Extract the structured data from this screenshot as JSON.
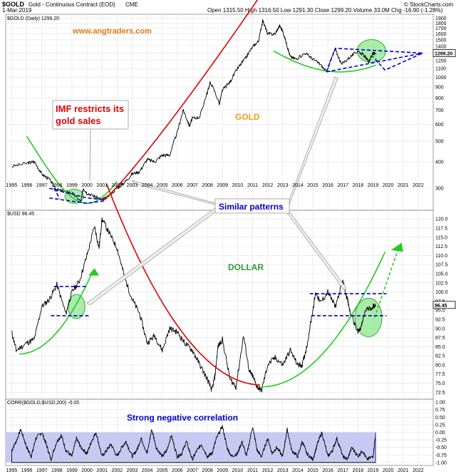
{
  "header": {
    "symbol": "$GOLD",
    "name": "Gold - Continuous Contract (EOD)",
    "exchange": "CME",
    "date": "1-Mar-2019",
    "stats": "Open 1315.50  High 1316.50  Low 1291.30  Close 1299.20  Volume 33.0M  Chg -16.90 (-1.28%)",
    "credit": "© StockCharts.com",
    "site": "www.angtraders.com"
  },
  "chart_data": [
    {
      "type": "line",
      "panel": "gold",
      "legend": "$GOLD (Daily) 1299.20",
      "label": "GOLD",
      "y_scale": "log",
      "ylim": [
        240,
        1950
      ],
      "y_ticks": [
        300,
        400,
        500,
        600,
        700,
        800,
        900,
        1000,
        1100,
        1200,
        1300,
        1400,
        1500,
        1600,
        1700,
        1800,
        1900
      ],
      "last_value": "1299.20",
      "x_years": [
        "1995",
        "1996",
        "1997",
        "1998",
        "1999",
        "2000",
        "2001",
        "2002",
        "2003",
        "2004",
        "2005",
        "2006",
        "2007",
        "2008",
        "2009",
        "2010",
        "2011",
        "2012",
        "2013",
        "2014",
        "2015",
        "2016",
        "2017",
        "2018",
        "2019",
        "2020",
        "2021",
        "2022"
      ],
      "series": [
        {
          "x": [
            1995.0,
            1996.1,
            1996.5,
            1997.0,
            1997.5,
            1998.0,
            1998.5,
            1999.0,
            1999.6,
            1999.75,
            2000.0,
            2000.5,
            2001.0,
            2001.3,
            2002.0,
            2002.5,
            2003.0,
            2003.5,
            2004.0,
            2004.5,
            2005.0,
            2005.5,
            2006.0,
            2006.4,
            2006.8,
            2007.0,
            2007.5,
            2008.0,
            2008.2,
            2008.8,
            2009.0,
            2009.5,
            2010.0,
            2010.5,
            2011.0,
            2011.4,
            2011.68,
            2012.0,
            2012.5,
            2012.8,
            2013.0,
            2013.3,
            2013.5,
            2013.9,
            2014.5,
            2015.0,
            2015.5,
            2015.9,
            2016.5,
            2016.9,
            2017.5,
            2018.0,
            2018.5,
            2018.7,
            2019.0,
            2019.17
          ],
          "y": [
            380,
            395,
            400,
            350,
            330,
            295,
            290,
            285,
            260,
            300,
            285,
            275,
            265,
            270,
            300,
            320,
            350,
            360,
            410,
            400,
            430,
            430,
            550,
            700,
            590,
            640,
            650,
            850,
            950,
            750,
            870,
            950,
            1100,
            1220,
            1390,
            1480,
            1850,
            1600,
            1600,
            1750,
            1650,
            1400,
            1250,
            1220,
            1300,
            1220,
            1150,
            1060,
            1350,
            1150,
            1250,
            1330,
            1250,
            1180,
            1290,
            1299
          ]
        }
      ]
    },
    {
      "type": "line",
      "panel": "dollar",
      "legend": "$USD 96.45",
      "label": "DOLLAR",
      "ylim": [
        71,
        122
      ],
      "y_ticks": [
        72.5,
        75.0,
        77.5,
        80.0,
        82.5,
        85.0,
        87.5,
        90.0,
        92.5,
        95.0,
        97.5,
        100.0,
        102.5,
        105.0,
        107.5,
        110.0,
        112.5,
        115.0,
        117.5,
        120.0
      ],
      "last_value": "96.45",
      "series": [
        {
          "x": [
            1995.0,
            1995.3,
            1996.0,
            1996.5,
            1997.0,
            1997.5,
            1998.0,
            1998.6,
            1999.0,
            1999.5,
            2000.0,
            2000.5,
            2000.8,
            2001.0,
            2001.5,
            2002.0,
            2002.5,
            2003.0,
            2003.5,
            2004.0,
            2004.5,
            2005.0,
            2005.5,
            2006.0,
            2006.5,
            2007.0,
            2007.5,
            2008.0,
            2008.3,
            2008.5,
            2008.7,
            2009.0,
            2009.5,
            2009.9,
            2010.4,
            2010.8,
            2011.0,
            2011.3,
            2011.6,
            2012.0,
            2012.5,
            2013.0,
            2013.5,
            2014.0,
            2014.3,
            2014.6,
            2015.0,
            2015.2,
            2015.5,
            2016.0,
            2016.5,
            2017.0,
            2017.3,
            2017.5,
            2018.0,
            2018.2,
            2018.5,
            2019.0,
            2019.17
          ],
          "y": [
            89,
            84,
            86,
            87,
            96,
            98,
            102,
            94,
            100,
            103,
            110,
            118,
            112,
            120,
            116,
            112,
            104,
            98,
            94,
            86,
            88,
            84,
            90,
            89,
            86,
            84,
            80,
            76,
            73,
            77,
            85,
            87,
            76,
            74,
            88,
            78,
            77,
            74,
            73,
            80,
            82,
            80,
            84,
            80,
            80,
            85,
            95,
            100,
            97,
            100,
            96,
            103,
            98,
            94,
            89,
            90,
            95,
            96,
            96.45
          ]
        }
      ]
    },
    {
      "type": "area",
      "panel": "correlation",
      "legend": "CORR($GOLD,$USD,200) -0.05",
      "ylim": [
        -1.05,
        1.05
      ],
      "y_ticks": [
        -1.0,
        -0.75,
        -0.5,
        -0.25,
        0,
        0.25,
        0.5,
        0.75,
        1.0
      ],
      "last_value": "-0.05",
      "series": [
        {
          "x": [
            1995.0,
            1995.3,
            1995.6,
            1996.0,
            1996.3,
            1996.6,
            1997.0,
            1997.3,
            1997.6,
            1998.0,
            1998.3,
            1998.6,
            1999.0,
            1999.3,
            1999.6,
            2000.0,
            2000.3,
            2000.6,
            2001.0,
            2001.3,
            2001.6,
            2002.0,
            2002.3,
            2002.6,
            2003.0,
            2003.3,
            2003.6,
            2004.0,
            2004.3,
            2004.6,
            2005.0,
            2005.3,
            2005.6,
            2006.0,
            2006.3,
            2006.6,
            2007.0,
            2007.3,
            2007.6,
            2008.0,
            2008.3,
            2008.6,
            2009.0,
            2009.3,
            2009.6,
            2010.0,
            2010.3,
            2010.6,
            2011.0,
            2011.3,
            2011.6,
            2012.0,
            2012.3,
            2012.6,
            2013.0,
            2013.3,
            2013.6,
            2014.0,
            2014.3,
            2014.6,
            2015.0,
            2015.3,
            2015.6,
            2016.0,
            2016.3,
            2016.6,
            2017.0,
            2017.3,
            2017.6,
            2018.0,
            2018.3,
            2018.6,
            2019.0,
            2019.17
          ],
          "y": [
            -0.6,
            -0.3,
            0.1,
            -0.5,
            -0.8,
            -0.2,
            0.0,
            -0.4,
            -0.9,
            -0.3,
            -0.1,
            -0.6,
            -0.8,
            -0.2,
            -0.5,
            -0.7,
            -0.3,
            0.0,
            -0.8,
            -0.6,
            -0.4,
            -0.8,
            -0.5,
            -0.3,
            -0.8,
            -0.6,
            -0.2,
            -0.7,
            0.1,
            -0.5,
            -0.8,
            -0.6,
            -0.1,
            -0.8,
            -0.7,
            -0.3,
            -0.9,
            -0.6,
            -0.4,
            -0.8,
            -0.7,
            -0.2,
            0.2,
            -0.5,
            -0.8,
            -0.7,
            -0.3,
            -0.8,
            0.2,
            -0.6,
            -0.8,
            -0.2,
            -0.7,
            -0.5,
            -0.8,
            0.1,
            -0.6,
            -0.8,
            -0.3,
            -0.7,
            -0.9,
            -0.4,
            0.0,
            -0.8,
            -0.6,
            -0.2,
            -0.8,
            -0.9,
            -0.5,
            -0.8,
            -0.6,
            -0.9,
            -0.8,
            -0.05
          ]
        }
      ]
    }
  ],
  "annotations": {
    "imf_line1": "IMF restricts its",
    "imf_line2": "gold sales",
    "similar": "Similar patterns",
    "strong_corr": "Strong negative correlation"
  },
  "colors": {
    "price": "#000000",
    "red_curve": "#e00000",
    "green_curve": "#22cc22",
    "blue_dash": "#0000cc",
    "corr_fill": "#aaaaee",
    "highlight": "#66dd66"
  }
}
